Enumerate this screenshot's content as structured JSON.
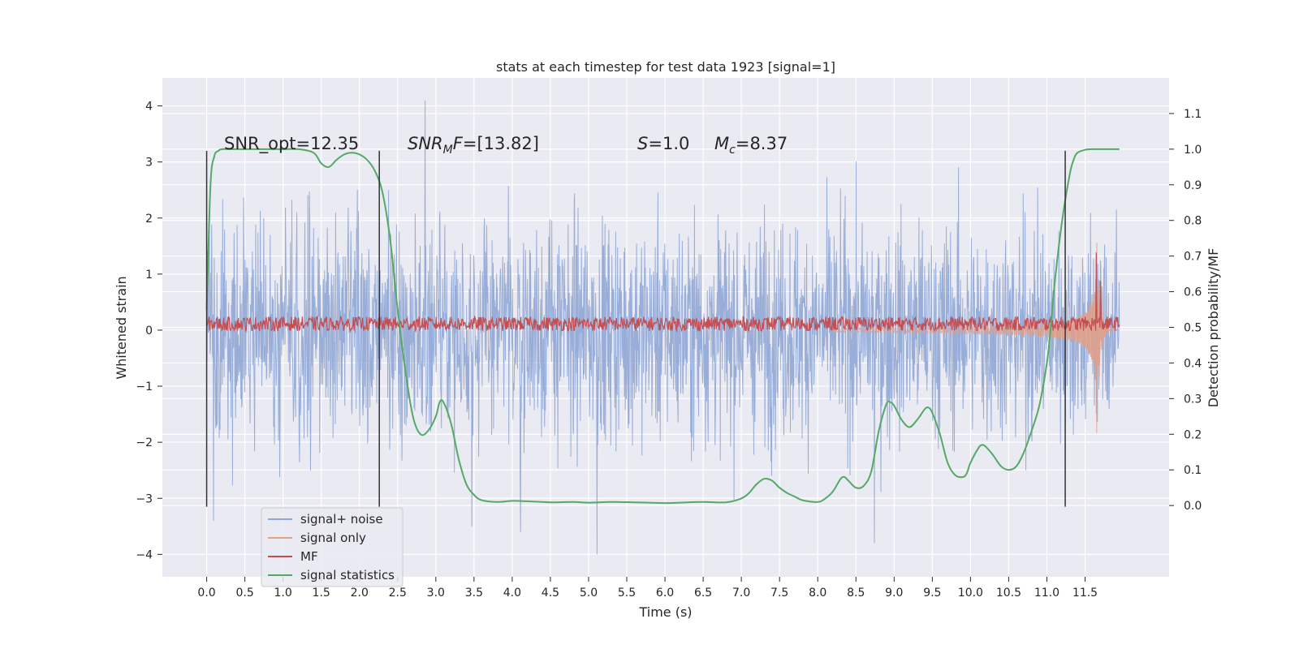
{
  "chart_data": {
    "type": "line",
    "title": "stats at each timestep for test data 1923 [signal=1]",
    "xlabel": "Time (s)",
    "ylabel": "Whitened strain",
    "ylabel_right": "Detection probability/MF",
    "xlim": [
      -0.58,
      12.6
    ],
    "ylim": [
      -4.4,
      4.5
    ],
    "ylim_right": [
      -0.2,
      1.2
    ],
    "x_ticks": [
      0.0,
      0.5,
      1.0,
      1.5,
      2.0,
      2.5,
      3.0,
      3.5,
      4.0,
      4.5,
      5.0,
      5.5,
      6.0,
      6.5,
      7.0,
      7.5,
      8.0,
      8.5,
      9.0,
      9.5,
      10.0,
      10.5,
      11.0,
      11.5
    ],
    "x_tick_labels": [
      "0.0",
      "0.5",
      "1.0",
      "1.5",
      "2.0",
      "2.5",
      "3.0",
      "3.5",
      "4.0",
      "4.5",
      "5.0",
      "5.5",
      "6.0",
      "6.5",
      "7.0",
      "7.5",
      "8.0",
      "8.5",
      "9.0",
      "9.5",
      "10.0",
      "10.5",
      "11.0",
      "11.5"
    ],
    "y_ticks": [
      -4,
      -3,
      -2,
      -1,
      0,
      1,
      2,
      3,
      4
    ],
    "y_tick_labels": [
      "−4",
      "−3",
      "−2",
      "−1",
      "0",
      "1",
      "2",
      "3",
      "4"
    ],
    "y_ticks_right": [
      0.0,
      0.1,
      0.2,
      0.3,
      0.4,
      0.5,
      0.6,
      0.7,
      0.8,
      0.9,
      1.0,
      1.1
    ],
    "y_tick_labels_right": [
      "0.0",
      "0.1",
      "0.2",
      "0.3",
      "0.4",
      "0.5",
      "0.6",
      "0.7",
      "0.8",
      "0.9",
      "1.0",
      "1.1"
    ],
    "grid": true,
    "legend_position": "bottom-left",
    "legend": [
      "signal+ noise",
      "signal only",
      "MF",
      "signal statistics"
    ],
    "annotations": [
      {
        "label": "SNR_opt=",
        "value": "12.35"
      },
      {
        "label": "SNR_MF=",
        "value": "[13.82]"
      },
      {
        "label": "S=",
        "value": "1.0"
      },
      {
        "label": "M_c=",
        "value": "8.37"
      }
    ],
    "vertical_lines_x": [
      0.0,
      2.26,
      11.24
    ],
    "vertical_lines_range": [
      -3.15,
      3.2
    ],
    "series": [
      {
        "name": "signal+ noise",
        "axis": "left",
        "color": "#8fa6d4",
        "x_range": [
          0.0,
          11.95
        ],
        "typical_envelope": [
          -1.5,
          1.5
        ],
        "max_abs_observed": 4.1,
        "peaks": [
          [
            2.86,
            4.1
          ],
          [
            5.11,
            -4.0
          ],
          [
            8.74,
            -3.8
          ],
          [
            0.09,
            -3.4
          ],
          [
            3.47,
            -3.5
          ],
          [
            4.11,
            -3.6
          ]
        ]
      },
      {
        "name": "signal only",
        "axis": "left",
        "color": "#e0a08a",
        "chirp": {
          "t_start": 8.2,
          "t_merger": 11.65,
          "t_end": 11.95,
          "peak_amplitude": 2.1
        }
      },
      {
        "name": "MF",
        "axis": "right",
        "color": "#c44e52",
        "x_range": [
          0.0,
          11.95
        ],
        "baseline": 0.5,
        "noise_band": [
          0.49,
          0.53
        ],
        "spikes": [
          [
            11.65,
            0.71
          ],
          [
            11.7,
            0.63
          ]
        ]
      },
      {
        "name": "signal statistics",
        "axis": "right",
        "color": "#55a868",
        "x": [
          0.0,
          0.05,
          0.1,
          0.15,
          0.2,
          0.3,
          0.5,
          0.8,
          1.0,
          1.2,
          1.4,
          1.5,
          1.6,
          1.7,
          1.8,
          1.9,
          2.0,
          2.1,
          2.2,
          2.3,
          2.4,
          2.5,
          2.6,
          2.7,
          2.8,
          2.9,
          3.0,
          3.05,
          3.1,
          3.2,
          3.3,
          3.4,
          3.5,
          3.6,
          3.8,
          4.0,
          4.2,
          4.5,
          4.8,
          5.0,
          5.3,
          5.6,
          6.0,
          6.2,
          6.5,
          6.8,
          7.0,
          7.1,
          7.2,
          7.3,
          7.4,
          7.5,
          7.6,
          7.7,
          7.8,
          8.0,
          8.1,
          8.2,
          8.3,
          8.35,
          8.4,
          8.5,
          8.6,
          8.7,
          8.8,
          8.9,
          8.95,
          9.0,
          9.1,
          9.2,
          9.3,
          9.4,
          9.45,
          9.5,
          9.6,
          9.7,
          9.8,
          9.9,
          9.95,
          10.0,
          10.1,
          10.15,
          10.2,
          10.3,
          10.4,
          10.5,
          10.6,
          10.7,
          10.8,
          10.9,
          11.0,
          11.05,
          11.1,
          11.2,
          11.3,
          11.35,
          11.4,
          11.5,
          11.6,
          11.7,
          11.8,
          11.95
        ],
        "y": [
          0.55,
          0.9,
          0.98,
          0.995,
          1.0,
          1.0,
          1.0,
          1.0,
          1.0,
          1.0,
          0.99,
          0.96,
          0.95,
          0.97,
          0.985,
          0.99,
          0.985,
          0.97,
          0.94,
          0.88,
          0.75,
          0.55,
          0.38,
          0.25,
          0.2,
          0.21,
          0.25,
          0.29,
          0.29,
          0.23,
          0.13,
          0.06,
          0.03,
          0.015,
          0.01,
          0.013,
          0.012,
          0.009,
          0.01,
          0.008,
          0.01,
          0.009,
          0.007,
          0.008,
          0.01,
          0.009,
          0.02,
          0.035,
          0.06,
          0.075,
          0.07,
          0.05,
          0.035,
          0.025,
          0.015,
          0.01,
          0.02,
          0.04,
          0.075,
          0.08,
          0.07,
          0.05,
          0.055,
          0.095,
          0.21,
          0.285,
          0.29,
          0.28,
          0.24,
          0.22,
          0.24,
          0.27,
          0.275,
          0.26,
          0.2,
          0.12,
          0.085,
          0.08,
          0.09,
          0.12,
          0.16,
          0.17,
          0.165,
          0.14,
          0.11,
          0.1,
          0.11,
          0.15,
          0.21,
          0.28,
          0.4,
          0.5,
          0.62,
          0.8,
          0.93,
          0.97,
          0.99,
          0.998,
          1.0,
          1.0,
          1.0,
          1.0
        ]
      }
    ]
  }
}
